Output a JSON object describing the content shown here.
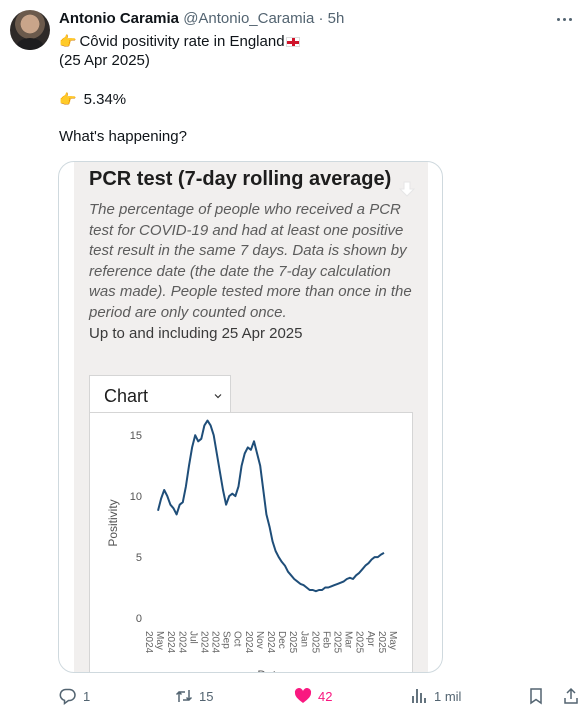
{
  "tweet": {
    "author_name": "Antonio Caramia",
    "handle": "@Antonio_Caramia",
    "separator": "·",
    "time": "5h",
    "line1": "Côvid positivity rate in England",
    "line2": "(25 Apr 2025)",
    "line3": "5.34%",
    "line4": "What's happening?"
  },
  "media": {
    "title": "PCR test (7-day rolling average)",
    "description": "The percentage of people who received a PCR test for COVID-19 and had at least one positive test result in the same 7 days. Data is shown by reference date (the date the 7-day calculation was made). People tested more than once in the period are only counted once.",
    "up_to": "Up to and including 25 Apr 2025",
    "select_label": "Chart"
  },
  "chart_data": {
    "type": "line",
    "ylabel": "Positivity",
    "xlabel": "Date",
    "ylim": [
      0,
      16
    ],
    "yticks": [
      0,
      5,
      10,
      15
    ],
    "grid": false,
    "line_color": "#1f4e79",
    "x_tick_labels": [
      "2024",
      "May",
      "2024",
      "2024",
      "Jul",
      "2024",
      "2024",
      "Sep",
      "Oct",
      "2024",
      "Nov",
      "2024",
      "Dec",
      "2025",
      "Jan",
      "2025",
      "Feb",
      "2025",
      "Mar",
      "2025",
      "Apr",
      "2025",
      "May"
    ],
    "series": [
      {
        "values": [
          8.8,
          9.8,
          10.5,
          10.0,
          9.3,
          9.0,
          8.5,
          9.3,
          9.5,
          10.8,
          12.5,
          14.0,
          15.0,
          14.5,
          14.7,
          15.8,
          16.2,
          15.8,
          15.0,
          13.5,
          12.0,
          10.5,
          9.3,
          10.0,
          10.2,
          10.0,
          10.8,
          12.5,
          13.5,
          14.0,
          13.8,
          14.5,
          13.5,
          12.5,
          10.5,
          8.5,
          7.5,
          6.3,
          5.5,
          5.0,
          4.6,
          4.3,
          3.8,
          3.5,
          3.2,
          3.0,
          2.8,
          2.7,
          2.5,
          2.3,
          2.3,
          2.2,
          2.3,
          2.3,
          2.5,
          2.5,
          2.6,
          2.7,
          2.8,
          2.9,
          3.0,
          3.2,
          3.3,
          3.2,
          3.5,
          3.7,
          4.0,
          4.3,
          4.5,
          4.8,
          5.0,
          5.0,
          5.2,
          5.34
        ]
      }
    ]
  },
  "actions": {
    "replies": "1",
    "reposts": "15",
    "likes": "42",
    "views": "1 mil"
  },
  "colors": {
    "like": "#f91880",
    "muted": "#536471",
    "line": "#1f4e79"
  }
}
